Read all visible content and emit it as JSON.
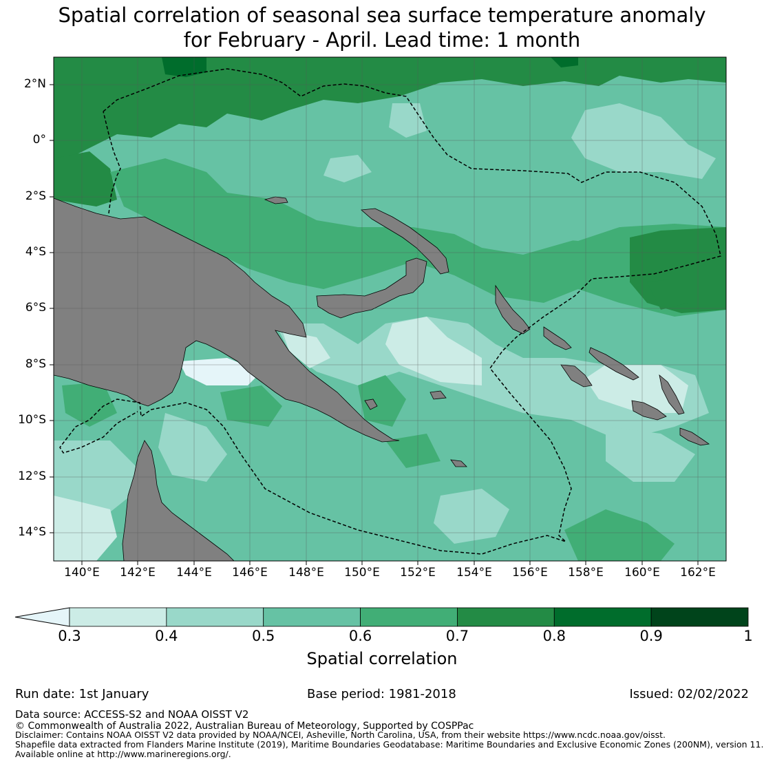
{
  "title": {
    "line1": "Spatial correlation of seasonal sea surface temperature anomaly",
    "line2": "for February - April. Lead time: 1 month"
  },
  "map": {
    "lat_labels": [
      "2°N",
      "0°",
      "2°S",
      "4°S",
      "6°S",
      "8°S",
      "10°S",
      "12°S",
      "14°S"
    ],
    "lon_labels": [
      "140°E",
      "142°E",
      "144°E",
      "146°E",
      "148°E",
      "150°E",
      "152°E",
      "154°E",
      "156°E",
      "158°E",
      "160°E",
      "162°E"
    ],
    "extent": {
      "lon": [
        139,
        163
      ],
      "lat": [
        -15,
        3
      ]
    },
    "land_color": "#808080",
    "ocean_note": "shaded by spatial correlation classes"
  },
  "colorbar": {
    "label": "Spatial correlation",
    "ticks": [
      "0.3",
      "0.4",
      "0.5",
      "0.6",
      "0.7",
      "0.8",
      "0.9",
      "1"
    ],
    "colors": [
      "#e5f5f9",
      "#ccece6",
      "#99d8c9",
      "#66c2a4",
      "#41ae76",
      "#238b45",
      "#006d2c",
      "#00441b"
    ]
  },
  "meta": {
    "run_date": "Run date: 1st January",
    "base_period": "Base period: 1981-2018",
    "issued": "Issued: 02/02/2022"
  },
  "footer": {
    "data_source": "Data source: ACCESS-S2 and NOAA OISST V2",
    "copyright": "© Commonwealth of Australia 2022, Australian Bureau of Meteorology, Supported by COSPPac",
    "disclaimer": "Disclaimer: Contains NOAA OISST V2 data provided by NOAA/NCEI, Asheville, North Carolina, USA, from their website https://www.ncdc.noaa.gov/oisst.",
    "shapefile": "Shapefile data extracted from Flanders Marine Institute (2019), Maritime Boundaries Geodatabase: Maritime Boundaries and Exclusive Economic Zones (200NM), version 11.",
    "available": "Available online at http://www.marineregions.org/."
  }
}
